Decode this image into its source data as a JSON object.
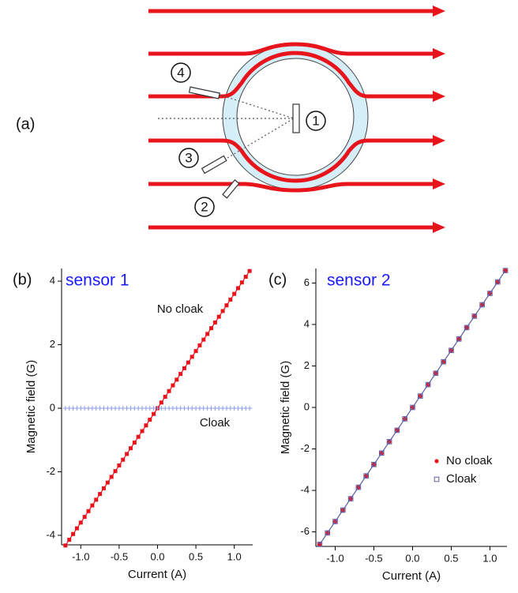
{
  "panel_labels": [
    "(a)",
    "(b)",
    "(c)"
  ],
  "diagram": {
    "sensor_labels": [
      "1",
      "2",
      "3",
      "4"
    ]
  },
  "chart_data": [
    {
      "type": "scatter",
      "title": "sensor 1",
      "x_label": "Current (A)",
      "y_label": "Magnetic field (G)",
      "x": [
        -1.2,
        -1.15,
        -1.1,
        -1.05,
        -1.0,
        -0.95,
        -0.9,
        -0.85,
        -0.8,
        -0.75,
        -0.7,
        -0.65,
        -0.6,
        -0.55,
        -0.5,
        -0.45,
        -0.4,
        -0.35,
        -0.3,
        -0.25,
        -0.2,
        -0.15,
        -0.1,
        -0.05,
        0,
        0.05,
        0.1,
        0.15,
        0.2,
        0.25,
        0.3,
        0.35,
        0.4,
        0.45,
        0.5,
        0.55,
        0.6,
        0.65,
        0.7,
        0.75,
        0.8,
        0.85,
        0.9,
        0.95,
        1.0,
        1.05,
        1.1,
        1.15,
        1.2
      ],
      "series": [
        {
          "name": "No cloak",
          "color": "#e8141c",
          "marker": "square",
          "line": true,
          "values": [
            -4.32,
            -4.14,
            -3.96,
            -3.78,
            -3.6,
            -3.42,
            -3.24,
            -3.06,
            -2.88,
            -2.7,
            -2.52,
            -2.34,
            -2.16,
            -1.98,
            -1.8,
            -1.62,
            -1.44,
            -1.26,
            -1.08,
            -0.9,
            -0.72,
            -0.54,
            -0.36,
            -0.18,
            0,
            0.18,
            0.36,
            0.54,
            0.72,
            0.9,
            1.08,
            1.26,
            1.44,
            1.62,
            1.8,
            1.98,
            2.16,
            2.34,
            2.52,
            2.7,
            2.88,
            3.06,
            3.24,
            3.42,
            3.6,
            3.78,
            3.96,
            4.14,
            4.32
          ]
        },
        {
          "name": "Cloak",
          "color": "#8c9be6",
          "marker": "cross",
          "line": false,
          "values": [
            0,
            0,
            0,
            0,
            0,
            0,
            0,
            0,
            0,
            0,
            0,
            0,
            0,
            0,
            0,
            0,
            0,
            0,
            0,
            0,
            0,
            0,
            0,
            0,
            0,
            0,
            0,
            0,
            0,
            0,
            0,
            0,
            0,
            0,
            0,
            0,
            0,
            0,
            0,
            0,
            0,
            0,
            0,
            0,
            0,
            0,
            0,
            0,
            0
          ]
        }
      ],
      "xlim": [
        -1.25,
        1.24
      ],
      "ylim": [
        -4.3,
        4.4
      ],
      "xticks": [
        {
          "value": -1,
          "label": "-1.0"
        },
        -0.5,
        {
          "value": 0,
          "label": "0.0"
        },
        0.5,
        {
          "value": 1,
          "label": "1.0"
        }
      ],
      "yticks": [
        -4,
        -2,
        0,
        2,
        4
      ],
      "grid": false,
      "legend": "inline"
    },
    {
      "type": "scatter",
      "title": "sensor 2",
      "x_label": "Current (A)",
      "y_label": "Magnetic field (G)",
      "x": [
        -1.2,
        -1.1,
        -1.0,
        -0.9,
        -0.8,
        -0.7,
        -0.6,
        -0.5,
        -0.4,
        -0.3,
        -0.2,
        -0.1,
        0,
        0.1,
        0.2,
        0.3,
        0.4,
        0.5,
        0.6,
        0.7,
        0.8,
        0.9,
        1.0,
        1.1,
        1.2
      ],
      "series": [
        {
          "name": "No cloak",
          "color": "#e8141c",
          "marker": "dot",
          "line": false,
          "values": [
            -6.6,
            -6.05,
            -5.5,
            -4.95,
            -4.4,
            -3.85,
            -3.3,
            -2.75,
            -2.2,
            -1.65,
            -1.1,
            -0.55,
            0,
            0.55,
            1.1,
            1.65,
            2.2,
            2.75,
            3.3,
            3.85,
            4.4,
            4.95,
            5.5,
            6.05,
            6.6
          ]
        },
        {
          "name": "Cloak",
          "color": "#5b5ea6",
          "marker": "open-square",
          "line": true,
          "values": [
            -6.6,
            -6.05,
            -5.5,
            -4.95,
            -4.4,
            -3.85,
            -3.3,
            -2.75,
            -2.2,
            -1.65,
            -1.1,
            -0.55,
            0,
            0.55,
            1.1,
            1.65,
            2.2,
            2.75,
            3.3,
            3.85,
            4.4,
            4.95,
            5.5,
            6.05,
            6.6
          ]
        }
      ],
      "xlim": [
        -1.25,
        1.22
      ],
      "ylim": [
        -6.7,
        6.7
      ],
      "xticks": [
        {
          "value": -1,
          "label": "-1.0"
        },
        -0.5,
        {
          "value": 0,
          "label": "0.0"
        },
        0.5,
        {
          "value": 1,
          "label": "1.0"
        }
      ],
      "yticks": [
        -6,
        -4,
        -2,
        0,
        2,
        4,
        6
      ],
      "grid": false,
      "legend": "lower right"
    }
  ]
}
